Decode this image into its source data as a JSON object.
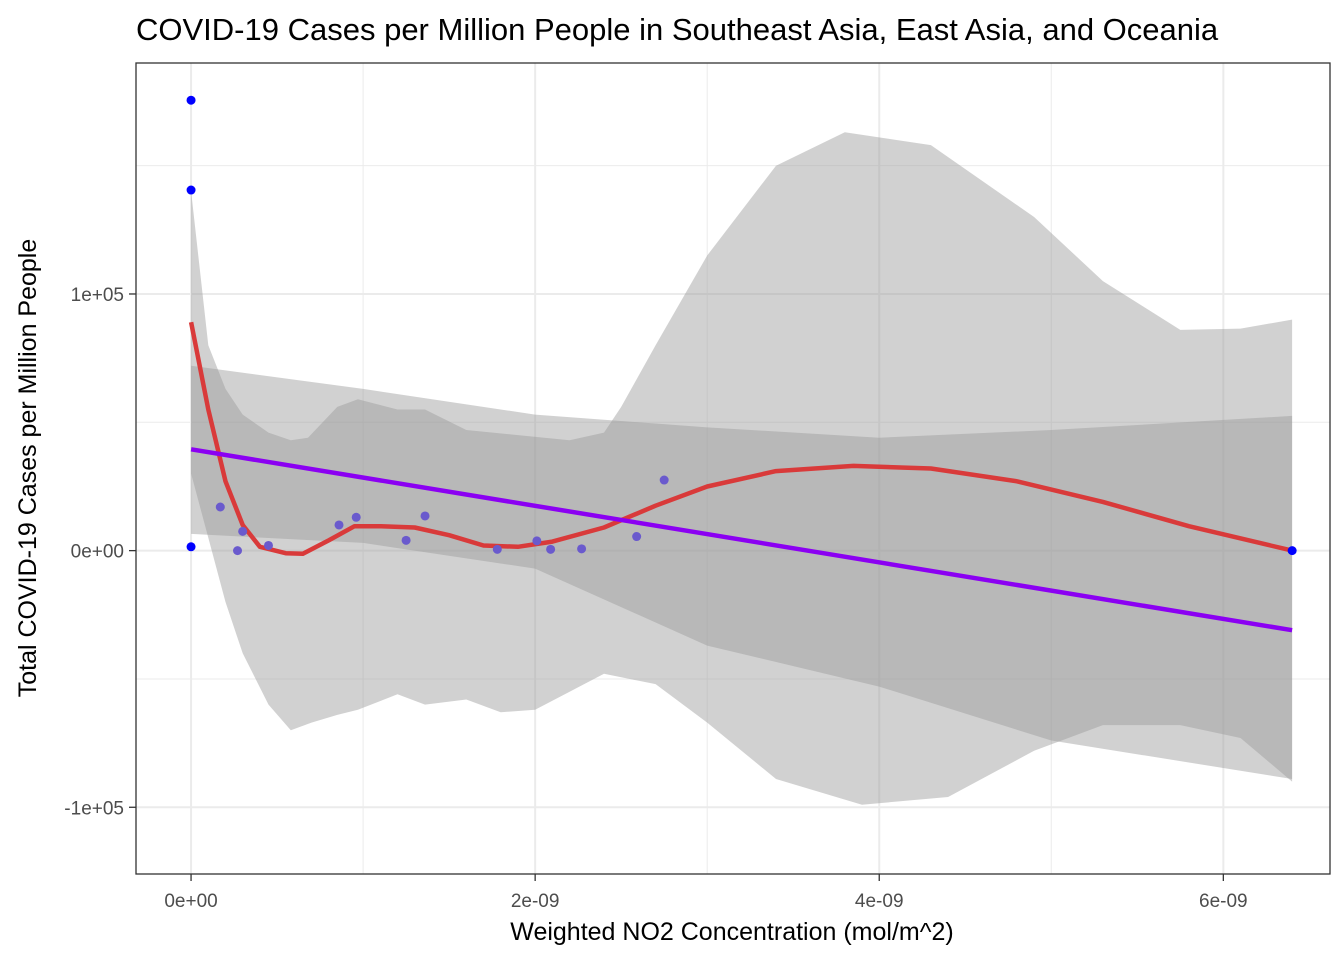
{
  "chart_data": {
    "type": "scatter",
    "title": "COVID-19 Cases per Million People in Southeast Asia, East Asia, and Oceania",
    "xlabel": "Weighted NO2 Concentration (mol/m^2)",
    "ylabel": "Total COVID-19 Cases per Million People",
    "xlim": [
      -3.2e-10,
      6.62e-09
    ],
    "ylim": [
      -126000,
      190000
    ],
    "x_ticks": [
      {
        "value": 0,
        "label": "0e+00"
      },
      {
        "value": 2e-09,
        "label": "2e-09"
      },
      {
        "value": 4e-09,
        "label": "4e-09"
      },
      {
        "value": 6e-09,
        "label": "6e-09"
      }
    ],
    "y_ticks": [
      {
        "value": 100000,
        "label": "1e+05"
      },
      {
        "value": 0,
        "label": "0e+00"
      },
      {
        "value": -100000,
        "label": "-1e+05"
      }
    ],
    "grid": true,
    "points": [
      {
        "x": 0.0,
        "y": 175500
      },
      {
        "x": 0.0,
        "y": 140500
      },
      {
        "x": 0.0,
        "y": 1500
      },
      {
        "x": 1.7e-10,
        "y": 17000
      },
      {
        "x": 2.7e-10,
        "y": 0
      },
      {
        "x": 3e-10,
        "y": 7500
      },
      {
        "x": 4.5e-10,
        "y": 2000
      },
      {
        "x": 8.6e-10,
        "y": 10000
      },
      {
        "x": 9.6e-10,
        "y": 13000
      },
      {
        "x": 1.25e-09,
        "y": 4000
      },
      {
        "x": 1.36e-09,
        "y": 13500
      },
      {
        "x": 1.78e-09,
        "y": 500
      },
      {
        "x": 2.01e-09,
        "y": 3800
      },
      {
        "x": 2.09e-09,
        "y": 500
      },
      {
        "x": 2.27e-09,
        "y": 700
      },
      {
        "x": 2.59e-09,
        "y": 5500
      },
      {
        "x": 2.75e-09,
        "y": 27500
      },
      {
        "x": 6.4e-09,
        "y": 0
      }
    ],
    "series": [
      {
        "type": "smooth",
        "color": "#d93a3a",
        "line": [
          [
            0,
            89000
          ],
          [
            1e-10,
            55000
          ],
          [
            2e-10,
            27000
          ],
          [
            3e-10,
            10000
          ],
          [
            4e-10,
            1500
          ],
          [
            5.5e-10,
            -1000
          ],
          [
            6.5e-10,
            -1200
          ],
          [
            8e-10,
            4000
          ],
          [
            9.5e-10,
            9500
          ],
          [
            1.1e-09,
            9500
          ],
          [
            1.3e-09,
            9000
          ],
          [
            1.5e-09,
            6000
          ],
          [
            1.7e-09,
            2000
          ],
          [
            1.9e-09,
            1500
          ],
          [
            2.1e-09,
            3500
          ],
          [
            2.4e-09,
            9000
          ],
          [
            2.7e-09,
            17500
          ],
          [
            3e-09,
            25000
          ],
          [
            3.4e-09,
            31000
          ],
          [
            3.85e-09,
            33000
          ],
          [
            4.3e-09,
            32000
          ],
          [
            4.8e-09,
            27000
          ],
          [
            5.3e-09,
            19000
          ],
          [
            5.8e-09,
            9500
          ],
          [
            6.4e-09,
            0
          ]
        ],
        "band_upper": [
          [
            0,
            140000
          ],
          [
            1e-10,
            80000
          ],
          [
            2e-10,
            63000
          ],
          [
            3e-10,
            53000
          ],
          [
            4.5e-10,
            46000
          ],
          [
            5.8e-10,
            43000
          ],
          [
            6.8e-10,
            44000
          ],
          [
            8.5e-10,
            56000
          ],
          [
            9.7e-10,
            59000
          ],
          [
            1.2e-09,
            55000
          ],
          [
            1.36e-09,
            55000
          ],
          [
            1.6e-09,
            47000
          ],
          [
            1.9e-09,
            45000
          ],
          [
            2.2e-09,
            43000
          ],
          [
            2.4e-09,
            46000
          ],
          [
            2.5e-09,
            56000
          ],
          [
            2.7e-09,
            80000
          ],
          [
            3e-09,
            115000
          ],
          [
            3.4e-09,
            150000
          ],
          [
            3.8e-09,
            163000
          ],
          [
            4.3e-09,
            158000
          ],
          [
            4.9e-09,
            130000
          ],
          [
            5.3e-09,
            105000
          ],
          [
            5.75e-09,
            86000
          ],
          [
            6.1e-09,
            86500
          ],
          [
            6.4e-09,
            90000
          ]
        ],
        "band_lower": [
          [
            0,
            30000
          ],
          [
            1e-10,
            5000
          ],
          [
            2e-10,
            -20000
          ],
          [
            3e-10,
            -40000
          ],
          [
            4.5e-10,
            -60000
          ],
          [
            5.8e-10,
            -70000
          ],
          [
            7e-10,
            -67000
          ],
          [
            8.5e-10,
            -64000
          ],
          [
            9.7e-10,
            -62000
          ],
          [
            1.2e-09,
            -56000
          ],
          [
            1.36e-09,
            -60000
          ],
          [
            1.6e-09,
            -58000
          ],
          [
            1.8e-09,
            -63000
          ],
          [
            2e-09,
            -62000
          ],
          [
            2.2e-09,
            -55000
          ],
          [
            2.4e-09,
            -48000
          ],
          [
            2.7e-09,
            -52000
          ],
          [
            3e-09,
            -67000
          ],
          [
            3.4e-09,
            -89000
          ],
          [
            3.9e-09,
            -99000
          ],
          [
            4.4e-09,
            -96000
          ],
          [
            4.9e-09,
            -78000
          ],
          [
            5.3e-09,
            -68000
          ],
          [
            5.75e-09,
            -68000
          ],
          [
            6.1e-09,
            -73000
          ],
          [
            6.4e-09,
            -90000
          ]
        ]
      },
      {
        "type": "linear",
        "color": "#8b00f2",
        "line": [
          [
            0,
            39500
          ],
          [
            6.4e-09,
            -31000
          ]
        ],
        "band_upper": [
          [
            0,
            72000
          ],
          [
            1e-09,
            63000
          ],
          [
            2e-09,
            53000
          ],
          [
            3e-09,
            48000
          ],
          [
            4e-09,
            44000
          ],
          [
            5e-09,
            47000
          ],
          [
            6.4e-09,
            52500
          ]
        ],
        "band_lower": [
          [
            0,
            6500
          ],
          [
            1e-09,
            3000
          ],
          [
            2e-09,
            -7000
          ],
          [
            3e-09,
            -37000
          ],
          [
            4e-09,
            -53000
          ],
          [
            5e-09,
            -74000
          ],
          [
            6.4e-09,
            -89000
          ]
        ]
      }
    ],
    "colors": {
      "points_left": "#0000ff",
      "points_mid": "#6a5acd",
      "band": "#999999",
      "grid_major": "#ebebeb",
      "panel_border": "#333333"
    }
  }
}
